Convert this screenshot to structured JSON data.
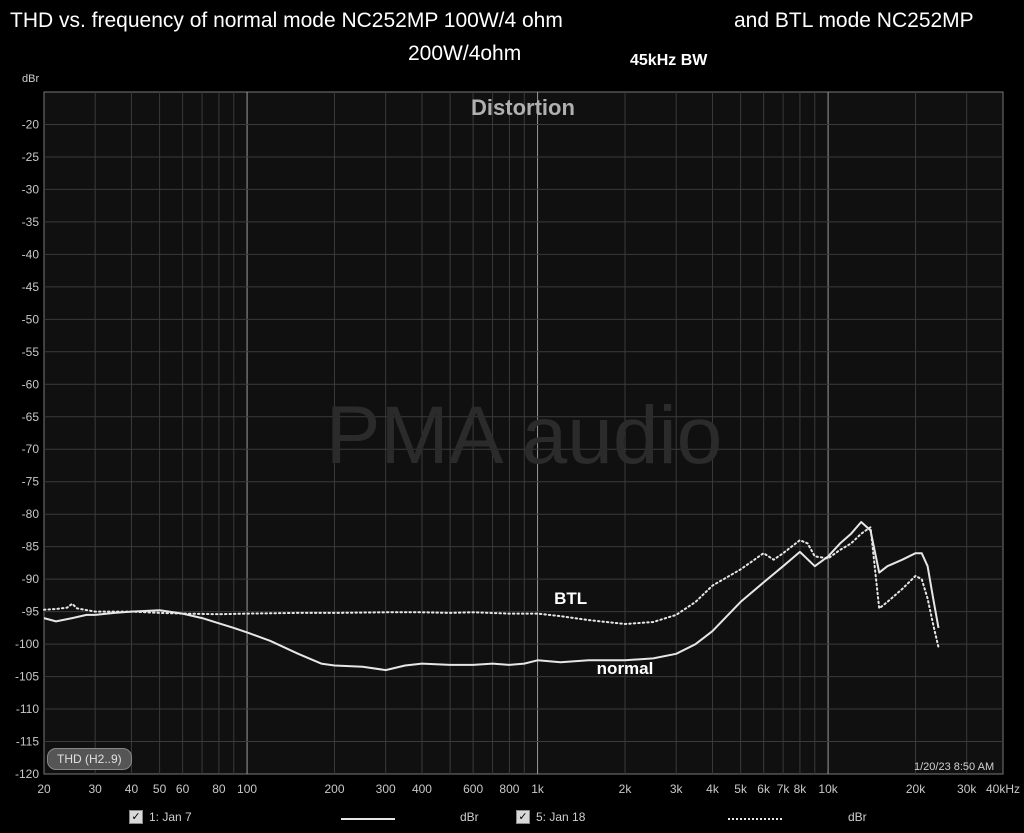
{
  "title_line1": "THD vs. frequency of normal mode NC252MP 100W/4 ohm",
  "title_line2": "and BTL mode NC252MP",
  "title_line3": "200W/4ohm",
  "bandwidth_note": "45kHz BW",
  "colors": {
    "background": "#000000",
    "plot_bg": "#101010",
    "grid": "#3a3a3a",
    "grid_decade": "#9a9a9a",
    "series_line": "#e6e6e6"
  },
  "chart_data": {
    "type": "line",
    "title": "Distortion",
    "watermark": "PMA audio",
    "ylabel": "dBr",
    "xscale": "log",
    "xlim": [
      20,
      40000
    ],
    "ylim": [
      -120,
      -15
    ],
    "grid": true,
    "yticks": [
      -20,
      -25,
      -30,
      -35,
      -40,
      -45,
      -50,
      -55,
      -60,
      -65,
      -70,
      -75,
      -80,
      -85,
      -90,
      -95,
      -100,
      -105,
      -110,
      -115,
      -120
    ],
    "xticks": [
      {
        "v": 20,
        "label": "20"
      },
      {
        "v": 30,
        "label": "30"
      },
      {
        "v": 40,
        "label": "40"
      },
      {
        "v": 50,
        "label": "50"
      },
      {
        "v": 60,
        "label": "60"
      },
      {
        "v": 80,
        "label": "80"
      },
      {
        "v": 100,
        "label": "100"
      },
      {
        "v": 200,
        "label": "200"
      },
      {
        "v": 300,
        "label": "300"
      },
      {
        "v": 400,
        "label": "400"
      },
      {
        "v": 600,
        "label": "600"
      },
      {
        "v": 800,
        "label": "800"
      },
      {
        "v": 1000,
        "label": "1k"
      },
      {
        "v": 2000,
        "label": "2k"
      },
      {
        "v": 3000,
        "label": "3k"
      },
      {
        "v": 4000,
        "label": "4k"
      },
      {
        "v": 5000,
        "label": "5k"
      },
      {
        "v": 6000,
        "label": "6k"
      },
      {
        "v": 7000,
        "label": "7k"
      },
      {
        "v": 8000,
        "label": "8k"
      },
      {
        "v": 10000,
        "label": "10k"
      },
      {
        "v": 20000,
        "label": "20k"
      },
      {
        "v": 30000,
        "label": "30k"
      },
      {
        "v": 40000,
        "label": "40kHz"
      }
    ],
    "legend_label": "THD (H2..9)",
    "timestamp": "1/20/23 8:50 AM",
    "series": [
      {
        "name": "1: Jan 7",
        "annotation": "normal",
        "unit": "dBr",
        "style": "solid",
        "points": [
          [
            20,
            -96
          ],
          [
            22,
            -96.5
          ],
          [
            25,
            -96
          ],
          [
            28,
            -95.5
          ],
          [
            30,
            -95.5
          ],
          [
            35,
            -95.2
          ],
          [
            40,
            -95
          ],
          [
            50,
            -94.8
          ],
          [
            60,
            -95.3
          ],
          [
            70,
            -96
          ],
          [
            80,
            -96.8
          ],
          [
            90,
            -97.5
          ],
          [
            100,
            -98.2
          ],
          [
            120,
            -99.5
          ],
          [
            150,
            -101.5
          ],
          [
            180,
            -103
          ],
          [
            200,
            -103.3
          ],
          [
            250,
            -103.5
          ],
          [
            300,
            -104
          ],
          [
            350,
            -103.3
          ],
          [
            400,
            -103
          ],
          [
            500,
            -103.2
          ],
          [
            600,
            -103.2
          ],
          [
            700,
            -103
          ],
          [
            800,
            -103.2
          ],
          [
            900,
            -103
          ],
          [
            1000,
            -102.5
          ],
          [
            1200,
            -102.8
          ],
          [
            1500,
            -102.5
          ],
          [
            2000,
            -102.5
          ],
          [
            2500,
            -102.2
          ],
          [
            3000,
            -101.5
          ],
          [
            3500,
            -100
          ],
          [
            4000,
            -98
          ],
          [
            5000,
            -93.5
          ],
          [
            6000,
            -90.5
          ],
          [
            7000,
            -88
          ],
          [
            8000,
            -85.8
          ],
          [
            9000,
            -88
          ],
          [
            10000,
            -86.5
          ],
          [
            11000,
            -84.5
          ],
          [
            12000,
            -83
          ],
          [
            13000,
            -81.2
          ],
          [
            14000,
            -82.5
          ],
          [
            15000,
            -89
          ],
          [
            16000,
            -88
          ],
          [
            18000,
            -87
          ],
          [
            20000,
            -86
          ],
          [
            21000,
            -86
          ],
          [
            22000,
            -88
          ],
          [
            23000,
            -93
          ],
          [
            24000,
            -97.5
          ]
        ]
      },
      {
        "name": "5: Jan 18",
        "annotation": "BTL",
        "unit": "dBr",
        "style": "dotted",
        "points": [
          [
            20,
            -94.7
          ],
          [
            22,
            -94.6
          ],
          [
            24,
            -94.4
          ],
          [
            25,
            -93.8
          ],
          [
            26,
            -94.5
          ],
          [
            30,
            -95
          ],
          [
            40,
            -95
          ],
          [
            50,
            -95.2
          ],
          [
            60,
            -95.3
          ],
          [
            80,
            -95.4
          ],
          [
            100,
            -95.3
          ],
          [
            150,
            -95.2
          ],
          [
            200,
            -95.2
          ],
          [
            300,
            -95.1
          ],
          [
            400,
            -95.1
          ],
          [
            500,
            -95.2
          ],
          [
            600,
            -95.1
          ],
          [
            800,
            -95.3
          ],
          [
            1000,
            -95.3
          ],
          [
            1200,
            -95.7
          ],
          [
            1500,
            -96.3
          ],
          [
            2000,
            -96.9
          ],
          [
            2500,
            -96.6
          ],
          [
            3000,
            -95.5
          ],
          [
            3500,
            -93.5
          ],
          [
            4000,
            -91
          ],
          [
            5000,
            -88.5
          ],
          [
            6000,
            -86
          ],
          [
            6500,
            -87
          ],
          [
            7000,
            -86
          ],
          [
            8000,
            -84
          ],
          [
            8500,
            -84.5
          ],
          [
            9000,
            -86.5
          ],
          [
            10000,
            -86.8
          ],
          [
            11000,
            -85.5
          ],
          [
            12000,
            -84.5
          ],
          [
            13000,
            -83
          ],
          [
            14000,
            -82
          ],
          [
            15000,
            -94.5
          ],
          [
            16000,
            -93.5
          ],
          [
            18000,
            -91.5
          ],
          [
            20000,
            -89.5
          ],
          [
            21000,
            -90
          ],
          [
            22000,
            -93
          ],
          [
            23000,
            -97
          ],
          [
            24000,
            -100.5
          ]
        ]
      }
    ],
    "annotations": [
      {
        "text": "BTL",
        "x": 1300,
        "y": -93.8
      },
      {
        "text": "normal",
        "x": 2000,
        "y": -104.6
      }
    ]
  },
  "bottom_legend": {
    "series1_label": "1: Jan 7",
    "series1_unit": "dBr",
    "series2_label": "5: Jan 18",
    "series2_unit": "dBr",
    "check_glyph": "✓"
  }
}
